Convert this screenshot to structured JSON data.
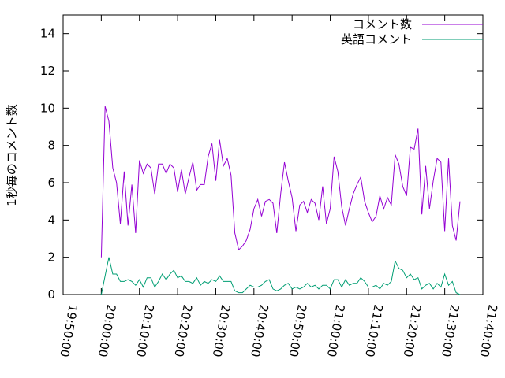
{
  "chart_data": {
    "type": "line",
    "ylabel": "1秒毎のコメント数",
    "x": [
      "20:00:00",
      "20:01:00",
      "20:02:00",
      "20:03:00",
      "20:04:00",
      "20:05:00",
      "20:06:00",
      "20:07:00",
      "20:08:00",
      "20:09:00",
      "20:10:00",
      "20:11:00",
      "20:12:00",
      "20:13:00",
      "20:14:00",
      "20:15:00",
      "20:16:00",
      "20:17:00",
      "20:18:00",
      "20:19:00",
      "20:20:00",
      "20:21:00",
      "20:22:00",
      "20:23:00",
      "20:24:00",
      "20:25:00",
      "20:26:00",
      "20:27:00",
      "20:28:00",
      "20:29:00",
      "20:30:00",
      "20:31:00",
      "20:32:00",
      "20:33:00",
      "20:34:00",
      "20:35:00",
      "20:36:00",
      "20:37:00",
      "20:38:00",
      "20:39:00",
      "20:40:00",
      "20:41:00",
      "20:42:00",
      "20:43:00",
      "20:44:00",
      "20:45:00",
      "20:46:00",
      "20:47:00",
      "20:48:00",
      "20:49:00",
      "20:50:00",
      "20:51:00",
      "20:52:00",
      "20:53:00",
      "20:54:00",
      "20:55:00",
      "20:56:00",
      "20:57:00",
      "20:58:00",
      "20:59:00",
      "21:00:00",
      "21:01:00",
      "21:02:00",
      "21:03:00",
      "21:04:00",
      "21:05:00",
      "21:06:00",
      "21:07:00",
      "21:08:00",
      "21:09:00",
      "21:10:00",
      "21:11:00",
      "21:12:00",
      "21:13:00",
      "21:14:00",
      "21:15:00",
      "21:16:00",
      "21:17:00",
      "21:18:00",
      "21:19:00",
      "21:20:00",
      "21:21:00",
      "21:22:00",
      "21:23:00",
      "21:24:00",
      "21:25:00",
      "21:26:00",
      "21:27:00",
      "21:28:00",
      "21:29:00",
      "21:30:00",
      "21:31:00",
      "21:32:00",
      "21:33:00",
      "21:34:00"
    ],
    "series": [
      {
        "name": "コメント数",
        "color": "#9400d3",
        "values": [
          2.0,
          10.1,
          9.3,
          6.8,
          6.0,
          3.8,
          6.6,
          3.7,
          5.9,
          3.3,
          7.2,
          6.5,
          7.0,
          6.8,
          5.4,
          7.0,
          7.0,
          6.5,
          7.0,
          6.8,
          5.5,
          6.7,
          5.4,
          6.3,
          7.1,
          5.6,
          5.9,
          5.9,
          7.4,
          8.1,
          6.1,
          8.3,
          6.9,
          7.3,
          6.4,
          3.3,
          2.4,
          2.6,
          2.9,
          3.5,
          4.6,
          5.1,
          4.2,
          5.0,
          5.1,
          4.9,
          3.3,
          5.4,
          7.1,
          6.1,
          5.2,
          3.4,
          4.8,
          5.0,
          4.4,
          5.1,
          4.9,
          4.0,
          5.8,
          3.8,
          4.6,
          7.4,
          6.6,
          4.7,
          3.7,
          4.6,
          5.4,
          5.9,
          6.3,
          5.0,
          4.4,
          3.9,
          4.2,
          5.3,
          4.6,
          5.2,
          4.8,
          7.5,
          7.0,
          5.8,
          5.3,
          7.9,
          7.8,
          8.9,
          4.3,
          6.9,
          4.6,
          6.1,
          7.3,
          7.1,
          3.4,
          7.3,
          3.7,
          2.9,
          5.0
        ]
      },
      {
        "name": "英語コメント",
        "color": "#009e73",
        "values": [
          0,
          1.0,
          2.0,
          1.1,
          1.1,
          0.7,
          0.7,
          0.8,
          0.7,
          0.5,
          0.8,
          0.4,
          0.9,
          0.9,
          0.4,
          0.7,
          1.1,
          0.8,
          1.1,
          1.3,
          0.9,
          1.0,
          0.7,
          0.7,
          0.6,
          0.9,
          0.5,
          0.7,
          0.6,
          0.8,
          0.7,
          1.0,
          0.7,
          0.7,
          0.7,
          0.2,
          0.1,
          0.1,
          0.3,
          0.5,
          0.4,
          0.4,
          0.5,
          0.7,
          0.8,
          0.3,
          0.2,
          0.3,
          0.5,
          0.6,
          0.3,
          0.4,
          0.3,
          0.4,
          0.6,
          0.4,
          0.5,
          0.3,
          0.5,
          0.5,
          0.3,
          0.8,
          0.8,
          0.4,
          0.8,
          0.5,
          0.6,
          0.6,
          0.9,
          0.7,
          0.4,
          0.4,
          0.5,
          0.3,
          0.6,
          0.5,
          0.7,
          1.8,
          1.4,
          1.3,
          0.9,
          1.1,
          0.8,
          0.9,
          0.3,
          0.5,
          0.6,
          0.3,
          0.6,
          0.4,
          1.1,
          0.5,
          0.7,
          0.1,
          0
        ]
      }
    ],
    "xlim": [
      "19:50:00",
      "21:40:00"
    ],
    "xticks": [
      "19:50:00",
      "20:00:00",
      "20:10:00",
      "20:20:00",
      "20:30:00",
      "20:40:00",
      "20:50:00",
      "21:00:00",
      "21:10:00",
      "21:20:00",
      "21:30:00",
      "21:40:00"
    ],
    "ylim": [
      0,
      15
    ],
    "yticks": [
      0,
      2,
      4,
      6,
      8,
      10,
      12,
      14
    ],
    "legend": "top-right"
  }
}
